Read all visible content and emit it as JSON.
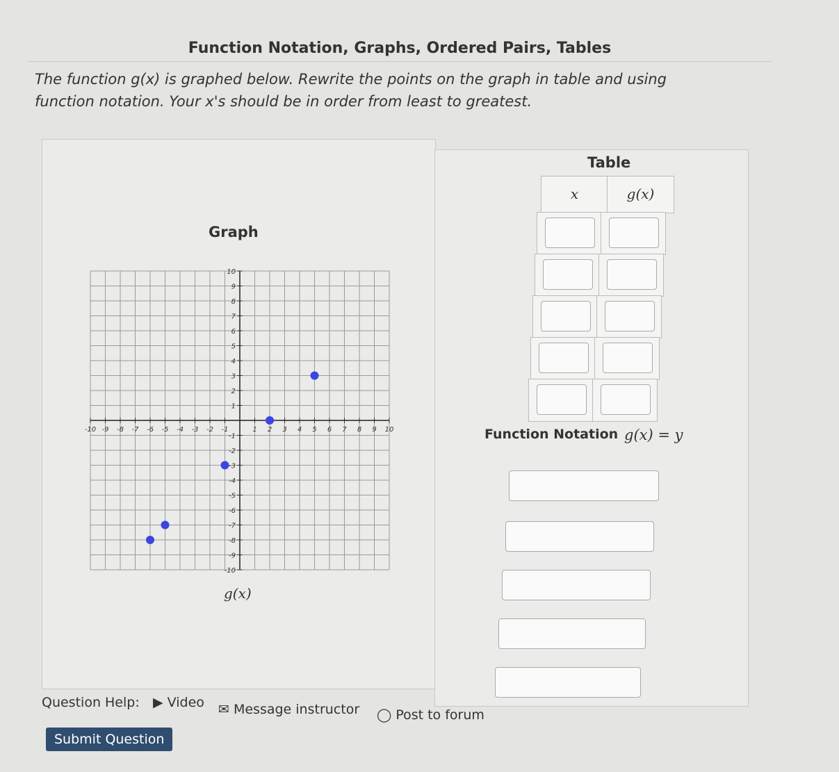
{
  "header": {
    "title": "Function Notation, Graphs, Ordered Pairs, Tables"
  },
  "instructions": "The function g(x) is graphed below. Rewrite the points on the graph in table and using function notation. Your x's should be in order from least to greatest.",
  "graph": {
    "type": "scatter",
    "title": "Graph",
    "caption": "g(x)",
    "x": [
      -6,
      -5,
      -1,
      2,
      5
    ],
    "y": [
      -8,
      -7,
      -3,
      0,
      3
    ],
    "color": "#3b46e0",
    "xlim": [
      -10,
      10
    ],
    "ylim": [
      -10,
      10
    ],
    "xticks": [
      -10,
      -9,
      -8,
      -7,
      -6,
      -5,
      -4,
      -3,
      -2,
      -1,
      1,
      2,
      3,
      4,
      5,
      6,
      7,
      8,
      9,
      10
    ],
    "yticks": [
      -10,
      -9,
      -8,
      -7,
      -6,
      -5,
      -4,
      -3,
      -2,
      -1,
      1,
      2,
      3,
      4,
      5,
      6,
      7,
      8,
      9,
      10
    ],
    "grid": true
  },
  "table": {
    "title": "Table",
    "columns": [
      "x",
      "g(x)"
    ]
  },
  "function_notation": {
    "label": "Function Notation",
    "equation": "g(x) = y"
  },
  "question_help": {
    "label": "Question Help:",
    "links": [
      "Video",
      "Message instructor",
      "Post to forum"
    ]
  },
  "submit": "Submit Question"
}
